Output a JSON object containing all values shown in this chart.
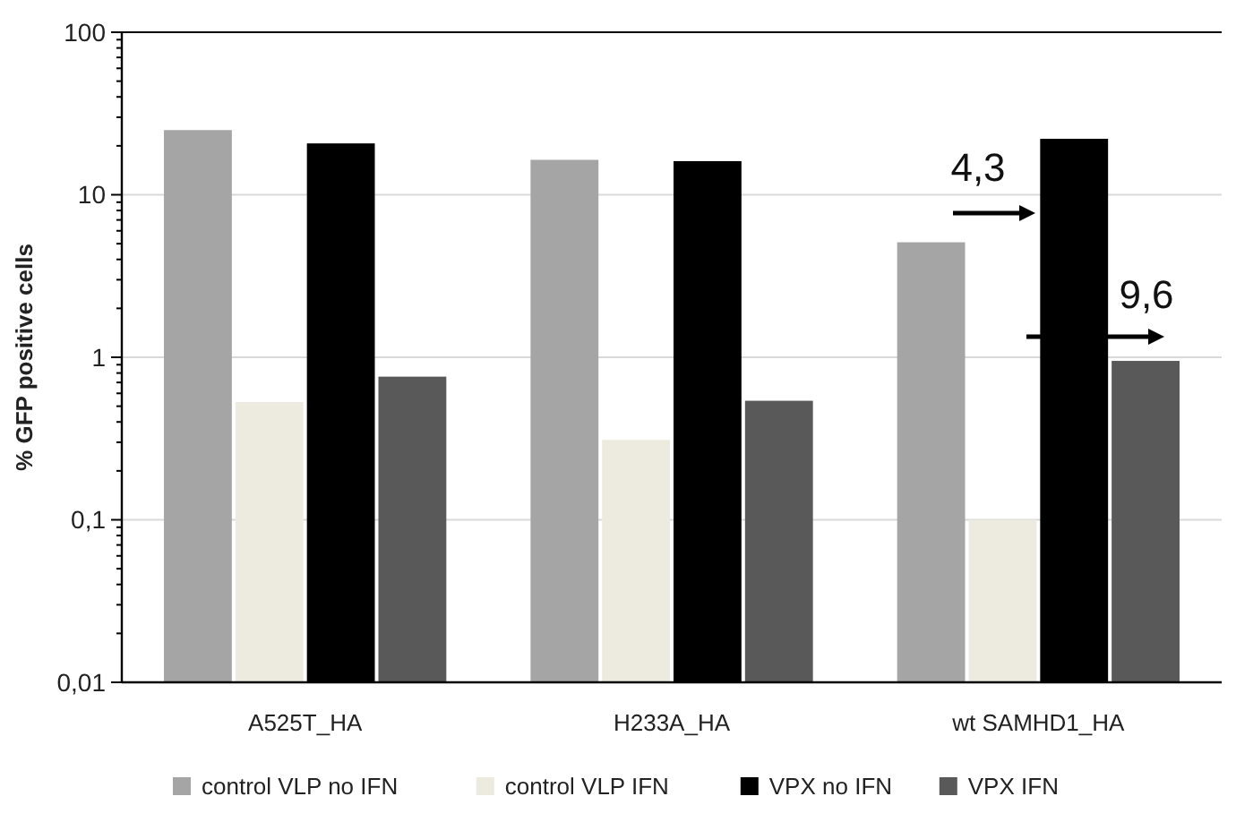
{
  "chart_data": {
    "type": "bar",
    "ylabel": "% GFP positive cells",
    "categories": [
      "A525T_HA",
      "H233A_HA",
      "wt SAMHD1_HA"
    ],
    "series": [
      {
        "name": "control VLP no IFN",
        "color": "#a5a5a5",
        "values": [
          25,
          16.4,
          5.1
        ]
      },
      {
        "name": "control VLP IFN",
        "color": "#edebe0",
        "values": [
          0.53,
          0.31,
          0.1
        ]
      },
      {
        "name": "VPX no IFN",
        "color": "#000000",
        "values": [
          20.7,
          16.1,
          22.1
        ]
      },
      {
        "name": "VPX IFN",
        "color": "#595959",
        "values": [
          0.76,
          0.54,
          0.95
        ]
      }
    ],
    "log": true,
    "ylim": [
      0.01,
      100
    ],
    "yticks": [
      {
        "value": 0.01,
        "label": "0,01"
      },
      {
        "value": 0.1,
        "label": "0,1"
      },
      1,
      10,
      100
    ],
    "grid": "y",
    "legend": "bottom",
    "annotations": [
      "4,3",
      "9,6"
    ]
  }
}
